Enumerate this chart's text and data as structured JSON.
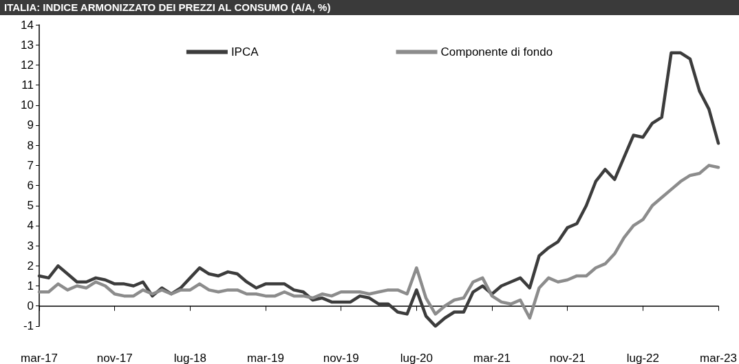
{
  "chart_data": {
    "type": "line",
    "title": "ITALIA: INDICE ARMONIZZATO DEI PREZZI AL CONSUMO (A/A, %)",
    "categories": [
      "mar-17",
      null,
      null,
      null,
      null,
      null,
      null,
      null,
      "nov-17",
      null,
      null,
      null,
      null,
      null,
      null,
      null,
      "lug-18",
      null,
      null,
      null,
      null,
      null,
      null,
      null,
      "mar-19",
      null,
      null,
      null,
      null,
      null,
      null,
      null,
      "nov-19",
      null,
      null,
      null,
      null,
      null,
      null,
      null,
      "lug-20",
      null,
      null,
      null,
      null,
      null,
      null,
      null,
      "mar-21",
      null,
      null,
      null,
      null,
      null,
      null,
      null,
      "nov-21",
      null,
      null,
      null,
      null,
      null,
      null,
      null,
      "lug-22",
      null,
      null,
      null,
      null,
      null,
      null,
      null,
      "mar-23"
    ],
    "series": [
      {
        "name": "IPCA",
        "color": "#3c3c3c",
        "values": [
          1.5,
          1.4,
          2.0,
          1.6,
          1.2,
          1.2,
          1.4,
          1.3,
          1.1,
          1.1,
          1.0,
          1.2,
          0.5,
          0.9,
          0.6,
          0.9,
          1.4,
          1.9,
          1.6,
          1.5,
          1.7,
          1.6,
          1.2,
          0.9,
          1.1,
          1.1,
          1.1,
          0.8,
          0.7,
          0.3,
          0.4,
          0.2,
          0.2,
          0.2,
          0.5,
          0.4,
          0.1,
          0.1,
          -0.3,
          -0.4,
          0.8,
          -0.5,
          -1.0,
          -0.6,
          -0.3,
          -0.3,
          0.7,
          1.0,
          0.6,
          1.0,
          1.2,
          1.4,
          0.9,
          2.5,
          2.9,
          3.2,
          3.9,
          4.1,
          5.0,
          6.2,
          6.8,
          6.3,
          7.4,
          8.5,
          8.4,
          9.1,
          9.4,
          12.6,
          12.6,
          12.3,
          10.7,
          9.8,
          8.1
        ]
      },
      {
        "name": "Componente di fondo",
        "color": "#8c8c8c",
        "values": [
          0.7,
          0.7,
          1.1,
          0.8,
          1.0,
          0.9,
          1.2,
          1.0,
          0.6,
          0.5,
          0.5,
          0.8,
          0.6,
          0.8,
          0.6,
          0.8,
          0.8,
          1.1,
          0.8,
          0.7,
          0.8,
          0.8,
          0.6,
          0.6,
          0.5,
          0.5,
          0.7,
          0.5,
          0.5,
          0.4,
          0.6,
          0.5,
          0.7,
          0.7,
          0.7,
          0.6,
          0.7,
          0.8,
          0.8,
          0.6,
          1.9,
          0.4,
          -0.4,
          0.0,
          0.3,
          0.4,
          1.2,
          1.4,
          0.5,
          0.2,
          0.1,
          0.3,
          -0.6,
          0.9,
          1.4,
          1.2,
          1.3,
          1.5,
          1.5,
          1.9,
          2.1,
          2.6,
          3.4,
          4.0,
          4.3,
          5.0,
          5.4,
          5.8,
          6.2,
          6.5,
          6.6,
          7.0,
          6.9
        ]
      }
    ],
    "ylim": [
      -1,
      14
    ],
    "yticks": [
      -1,
      0,
      1,
      2,
      3,
      4,
      5,
      6,
      7,
      8,
      9,
      10,
      11,
      12,
      13,
      14
    ],
    "legend": "top",
    "marker": "none",
    "line_style": "solid"
  }
}
